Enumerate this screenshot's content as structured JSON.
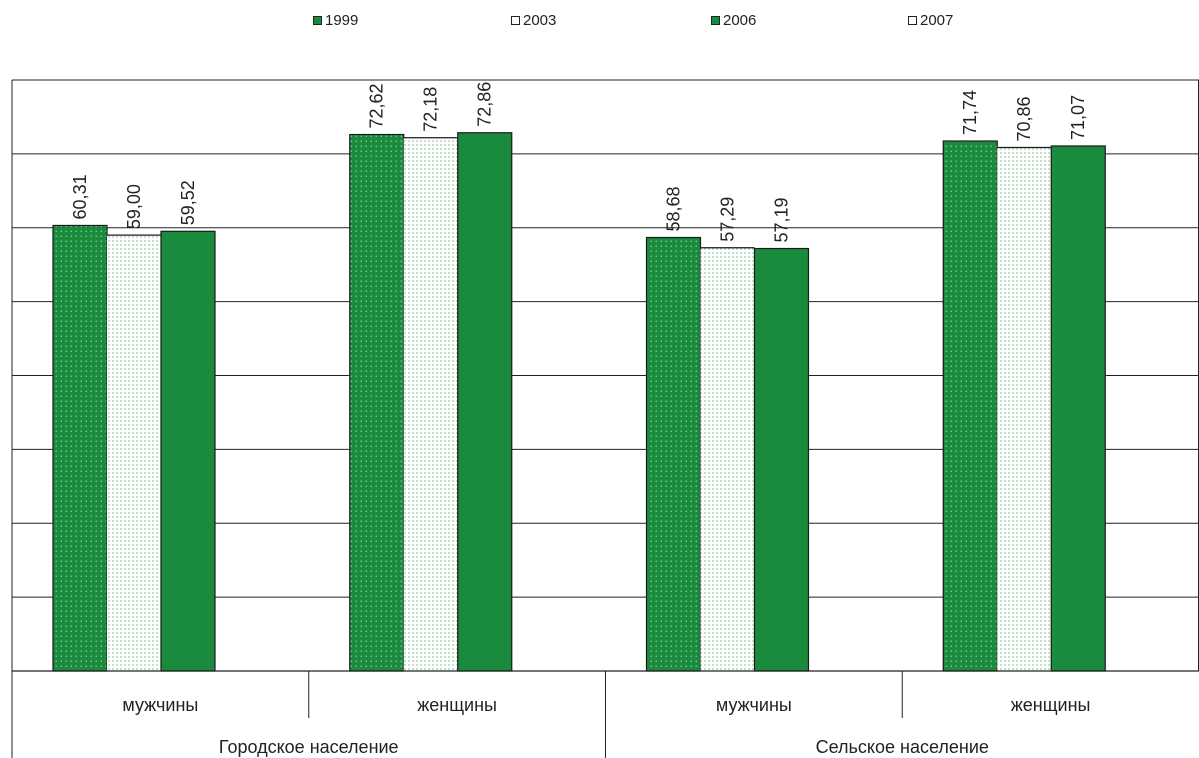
{
  "chart_data": {
    "type": "bar",
    "title": "",
    "xlabel": "",
    "ylabel": "",
    "ylim": [
      0,
      80
    ],
    "grid": true,
    "legend_position": "top",
    "groups": [
      {
        "label": "Городское население",
        "categories": [
          "мужчины",
          "женщины"
        ]
      },
      {
        "label": "Сельское население",
        "categories": [
          "мужчины",
          "женщины"
        ]
      }
    ],
    "categories": [
      "мужчины",
      "женщины",
      "мужчины",
      "женщины"
    ],
    "series": [
      {
        "name": "1999",
        "values": [
          60.31,
          72.62,
          58.68,
          71.74
        ],
        "labels": [
          "60,31",
          "72,62",
          "58,68",
          "71,74"
        ],
        "color": "#1a8a3c",
        "pattern": "dotted-dark"
      },
      {
        "name": "2003",
        "values": [
          59.0,
          72.18,
          57.29,
          70.86
        ],
        "labels": [
          "59,00",
          "72,18",
          "57,29",
          "70,86"
        ],
        "color": "#ffffff",
        "pattern": "dotted-light"
      },
      {
        "name": "2006",
        "values": [
          59.52,
          72.86,
          57.19,
          71.07
        ],
        "labels": [
          "59,52",
          "72,86",
          "57,19",
          "71,07"
        ],
        "color": "#1a8a3c",
        "pattern": "solid"
      },
      {
        "name": "2007",
        "values": [
          null,
          null,
          null,
          null
        ],
        "labels": [
          "",
          "",
          "",
          ""
        ],
        "color": "#ffffff",
        "pattern": "empty"
      }
    ]
  }
}
